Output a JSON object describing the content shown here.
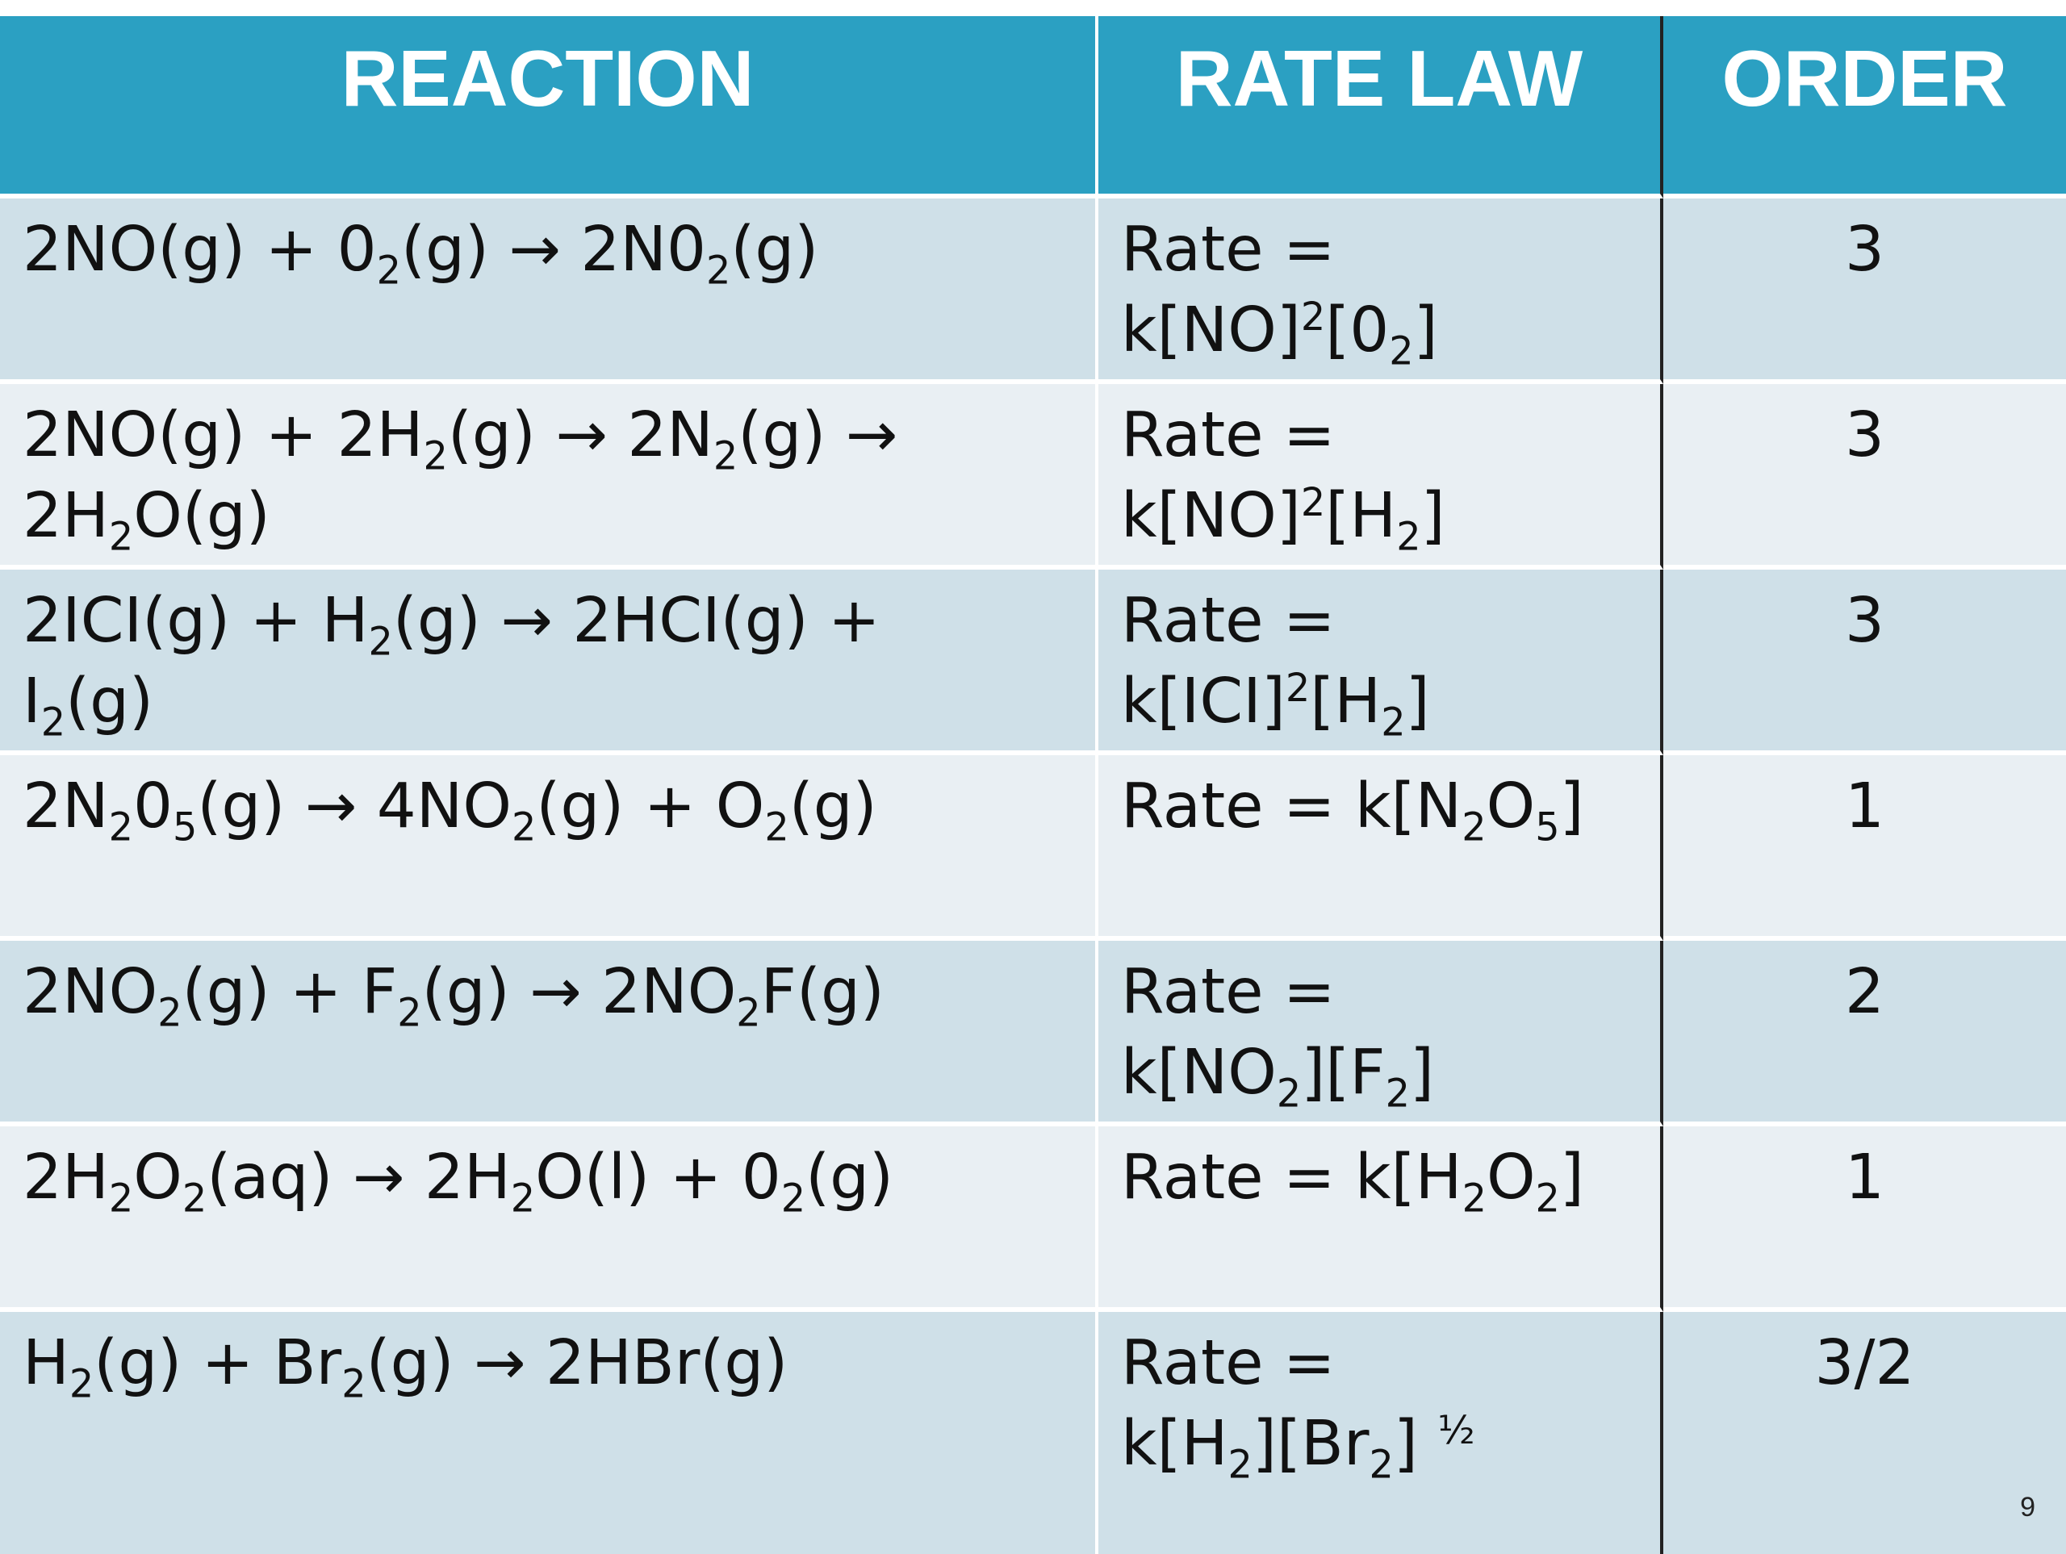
{
  "headers": {
    "reaction": "REACTION",
    "rate_law": "RATE LAW",
    "order": "ORDER"
  },
  "rows": [
    {
      "reaction": [
        "2NO(g) + 0{2}(g) → 2N0{2}(g)"
      ],
      "rate_law": [
        "Rate =",
        "k[NO]^{2}[0{2}]"
      ],
      "order": "3"
    },
    {
      "reaction": [
        "2NO(g) + 2H{2}(g) → 2N{2}(g) →",
        "2H{2}O(g)"
      ],
      "rate_law": [
        "Rate =",
        "k[NO]^{2}[H{2}]"
      ],
      "order": "3"
    },
    {
      "reaction": [
        "2ICI(g) + H{2}(g) → 2HCI(g) +",
        "I{2}(g)"
      ],
      "rate_law": [
        "Rate =",
        "k[ICI]^{2}[H{2}]"
      ],
      "order": "3"
    },
    {
      "reaction": [
        "2N{2}0{5}(g) → 4NO{2}(g) + O{2}(g)"
      ],
      "rate_law": [
        "Rate = k[N{2}O{5}]"
      ],
      "order": "1"
    },
    {
      "reaction": [
        "2NO{2}(g) + F{2}(g) → 2NO{2}F(g)"
      ],
      "rate_law": [
        "Rate =",
        "k[NO{2}][F{2}]"
      ],
      "order": "2"
    },
    {
      "reaction": [
        "2H{2}O{2}(aq) → 2H{2}O(l) + 0{2}(g)"
      ],
      "rate_law": [
        "Rate = k[H{2}O{2}]"
      ],
      "order": "1"
    },
    {
      "reaction": [
        "H{2}(g) + Br{2}(g) → 2HBr(g)"
      ],
      "rate_law": [
        "Rate =",
        "k[H{2}][Br{2}] ^{½}"
      ],
      "order": "3/2"
    }
  ],
  "colors": {
    "header": "#2ba0c2",
    "row_dark": "#cfe0e8",
    "row_light": "#e9eff3"
  },
  "page_number": "9"
}
